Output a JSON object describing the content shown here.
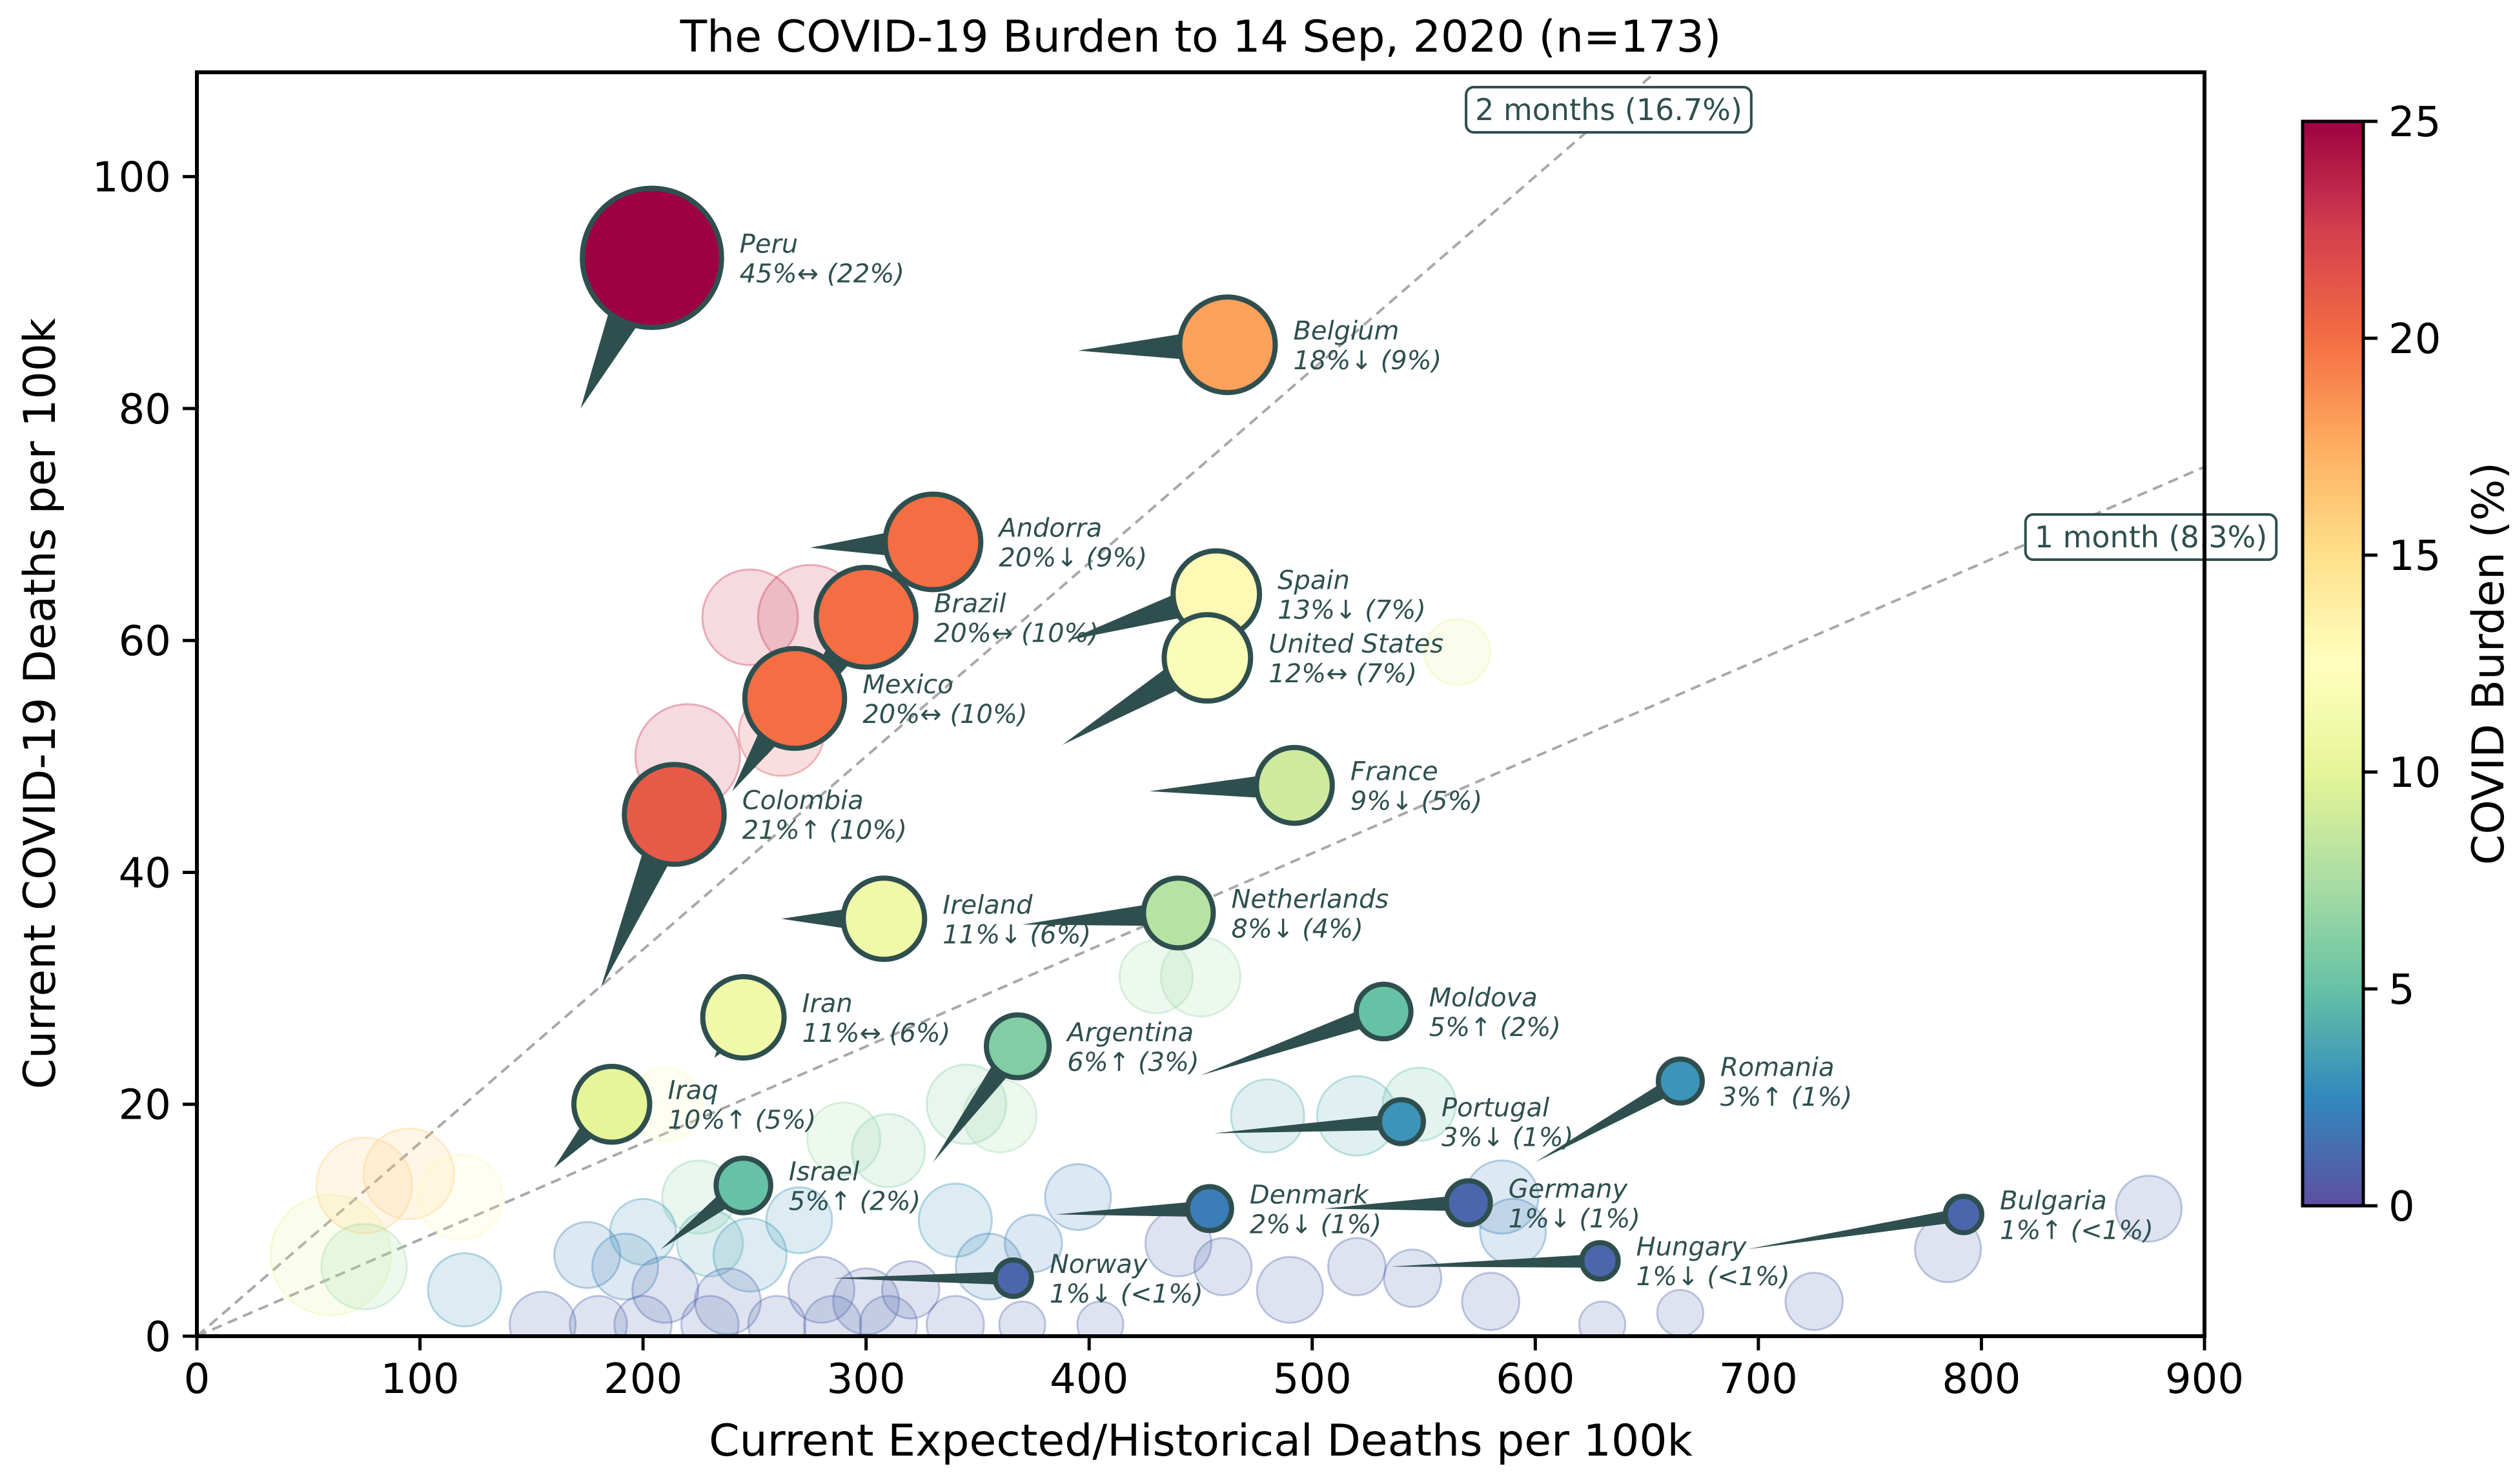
{
  "chart_data": {
    "type": "scatter",
    "title": "The COVID-19 Burden to 14 Sep, 2020 (n=173)",
    "xlabel": "Current Expected/Historical Deaths per 100k",
    "ylabel": "Current COVID-19 Deaths per 100k",
    "xlim": [
      0,
      900
    ],
    "ylim": [
      0,
      109
    ],
    "xticks": [
      "0",
      "100",
      "200",
      "300",
      "400",
      "500",
      "600",
      "700",
      "800",
      "900"
    ],
    "yticks": [
      "0",
      "20",
      "40",
      "60",
      "80",
      "100"
    ],
    "reference_lines": [
      {
        "label": "2 months (16.7%)",
        "slope": 0.1667
      },
      {
        "label": "1 month (8.3%)",
        "slope": 0.0833
      }
    ],
    "colorbar": {
      "label": "COVID Burden (%)",
      "min": 0,
      "max": 25,
      "ticks": [
        "0",
        "5",
        "10",
        "15",
        "20",
        "25"
      ],
      "colors": [
        "#5e4fa2",
        "#3288bd",
        "#66c2a5",
        "#abdda4",
        "#e6f598",
        "#ffffbf",
        "#fee08b",
        "#fdae61",
        "#f46d43",
        "#d53e4f",
        "#9e0142"
      ]
    },
    "countries": [
      {
        "name": "Peru",
        "x": 204,
        "y": 93,
        "burden": 45,
        "size": 22,
        "annotation": "45%↔ (22%)",
        "tail": [
          172,
          80
        ]
      },
      {
        "name": "Belgium",
        "x": 462,
        "y": 85.5,
        "burden": 18,
        "size": 9,
        "annotation": "18%↓ (9%)",
        "tail": [
          395,
          85
        ]
      },
      {
        "name": "Andorra",
        "x": 330,
        "y": 68.5,
        "burden": 20,
        "size": 9,
        "annotation": "20%↓ (9%)",
        "tail": [
          275,
          68
        ]
      },
      {
        "name": "Brazil",
        "x": 300,
        "y": 62,
        "burden": 20,
        "size": 10,
        "annotation": "20%↔ (10%)",
        "tail": [
          255,
          50
        ]
      },
      {
        "name": "Spain",
        "x": 457,
        "y": 64,
        "burden": 13,
        "size": 7,
        "annotation": "13%↓ (7%)",
        "tail": [
          390,
          60
        ]
      },
      {
        "name": "United States",
        "x": 453,
        "y": 58.5,
        "burden": 12,
        "size": 7,
        "annotation": "12%↔ (7%)",
        "tail": [
          388,
          51
        ]
      },
      {
        "name": "Mexico",
        "x": 268,
        "y": 55,
        "burden": 20,
        "size": 10,
        "annotation": "20%↔ (10%)",
        "tail": [
          240,
          47
        ]
      },
      {
        "name": "France",
        "x": 492,
        "y": 47.5,
        "burden": 9,
        "size": 5,
        "annotation": "9%↓ (5%)",
        "tail": [
          427,
          47
        ]
      },
      {
        "name": "Colombia",
        "x": 214,
        "y": 45,
        "burden": 21,
        "size": 10,
        "annotation": "21%↑ (10%)",
        "tail": [
          181,
          30
        ]
      },
      {
        "name": "Ireland",
        "x": 308,
        "y": 36,
        "burden": 11,
        "size": 6,
        "annotation": "11%↓ (6%)",
        "tail": [
          262,
          36
        ]
      },
      {
        "name": "Netherlands",
        "x": 440,
        "y": 36.5,
        "burden": 8,
        "size": 4,
        "annotation": "8%↓ (4%)",
        "tail": [
          370,
          35.5
        ]
      },
      {
        "name": "Iran",
        "x": 245,
        "y": 27.5,
        "burden": 11,
        "size": 6,
        "annotation": "11%↔ (6%)",
        "tail": [
          232,
          24
        ]
      },
      {
        "name": "Moldova",
        "x": 532,
        "y": 28,
        "burden": 5,
        "size": 2,
        "annotation": "5%↑ (2%)",
        "tail": [
          450,
          22.5
        ]
      },
      {
        "name": "Argentina",
        "x": 368,
        "y": 25,
        "burden": 6,
        "size": 3,
        "annotation": "6%↑ (3%)",
        "tail": [
          330,
          15
        ]
      },
      {
        "name": "Iraq",
        "x": 186,
        "y": 20,
        "burden": 10,
        "size": 5,
        "annotation": "10%↑ (5%)",
        "tail": [
          160,
          14.5
        ]
      },
      {
        "name": "Romania",
        "x": 665,
        "y": 22,
        "burden": 3,
        "size": 1,
        "annotation": "3%↑ (1%)",
        "tail": [
          600,
          15
        ]
      },
      {
        "name": "Portugal",
        "x": 540,
        "y": 18.5,
        "burden": 3,
        "size": 1,
        "annotation": "3%↓ (1%)",
        "tail": [
          456,
          17.5
        ]
      },
      {
        "name": "Israel",
        "x": 245,
        "y": 13,
        "burden": 5,
        "size": 2,
        "annotation": "5%↑ (2%)",
        "tail": [
          208,
          7.5
        ]
      },
      {
        "name": "Denmark",
        "x": 454,
        "y": 11,
        "burden": 2,
        "size": 1,
        "annotation": "2%↓ (1%)",
        "tail": [
          385,
          10.5
        ]
      },
      {
        "name": "Germany",
        "x": 570,
        "y": 11.5,
        "burden": 1,
        "size": 1,
        "annotation": "1%↓ (1%)",
        "tail": [
          505,
          11
        ]
      },
      {
        "name": "Bulgaria",
        "x": 792,
        "y": 10.5,
        "burden": 1,
        "size": 0.5,
        "annotation": "1%↑ (<1%)",
        "tail": [
          695,
          7.5
        ]
      },
      {
        "name": "Hungary",
        "x": 629,
        "y": 6.5,
        "burden": 1,
        "size": 0.5,
        "annotation": "1%↓ (<1%)",
        "tail": [
          535,
          6
        ]
      },
      {
        "name": "Norway",
        "x": 366,
        "y": 5,
        "burden": 1,
        "size": 0.5,
        "annotation": "1%↓ (<1%)",
        "tail": [
          285,
          5
        ]
      }
    ],
    "background_points": [
      {
        "x": 60,
        "y": 7,
        "burden": 10,
        "size": 14
      },
      {
        "x": 75,
        "y": 13,
        "burden": 16,
        "size": 8
      },
      {
        "x": 95,
        "y": 14,
        "burden": 16,
        "size": 7
      },
      {
        "x": 118,
        "y": 12,
        "burden": 13,
        "size": 6
      },
      {
        "x": 75,
        "y": 6,
        "burden": 7,
        "size": 6
      },
      {
        "x": 220,
        "y": 50,
        "burden": 23,
        "size": 10
      },
      {
        "x": 248,
        "y": 62,
        "burden": 23,
        "size": 8
      },
      {
        "x": 275,
        "y": 62,
        "burden": 23,
        "size": 10
      },
      {
        "x": 262,
        "y": 52,
        "burden": 22,
        "size": 6
      },
      {
        "x": 565,
        "y": 59,
        "burden": 10,
        "size": 3
      },
      {
        "x": 430,
        "y": 31,
        "burden": 7,
        "size": 4
      },
      {
        "x": 450,
        "y": 31,
        "burden": 7,
        "size": 5
      },
      {
        "x": 345,
        "y": 20,
        "burden": 6,
        "size": 5
      },
      {
        "x": 360,
        "y": 19,
        "burden": 7,
        "size": 4
      },
      {
        "x": 290,
        "y": 17,
        "burden": 7,
        "size": 4
      },
      {
        "x": 310,
        "y": 16,
        "burden": 6,
        "size": 4
      },
      {
        "x": 480,
        "y": 19,
        "burden": 4,
        "size": 4
      },
      {
        "x": 520,
        "y": 19,
        "burden": 4,
        "size": 5
      },
      {
        "x": 548,
        "y": 20,
        "burden": 5,
        "size": 4
      },
      {
        "x": 585,
        "y": 12,
        "burden": 2,
        "size": 4
      },
      {
        "x": 590,
        "y": 9,
        "burden": 2,
        "size": 3
      },
      {
        "x": 340,
        "y": 10,
        "burden": 3,
        "size": 4
      },
      {
        "x": 225,
        "y": 12,
        "burden": 6,
        "size": 4
      },
      {
        "x": 210,
        "y": 20,
        "burden": 12,
        "size": 4
      },
      {
        "x": 230,
        "y": 8,
        "burden": 4,
        "size": 3
      },
      {
        "x": 248,
        "y": 7,
        "burden": 3,
        "size": 4
      },
      {
        "x": 120,
        "y": 4,
        "burden": 3,
        "size": 4
      },
      {
        "x": 175,
        "y": 7,
        "burden": 2,
        "size": 3
      },
      {
        "x": 192,
        "y": 6,
        "burden": 2,
        "size": 3
      },
      {
        "x": 210,
        "y": 4,
        "burden": 1,
        "size": 3
      },
      {
        "x": 238,
        "y": 3,
        "burden": 1,
        "size": 3
      },
      {
        "x": 280,
        "y": 4,
        "burden": 1,
        "size": 3
      },
      {
        "x": 300,
        "y": 3,
        "burden": 1,
        "size": 3
      },
      {
        "x": 320,
        "y": 4,
        "burden": 1,
        "size": 2
      },
      {
        "x": 155,
        "y": 1,
        "burden": 1,
        "size": 3
      },
      {
        "x": 180,
        "y": 1,
        "burden": 1,
        "size": 2
      },
      {
        "x": 200,
        "y": 1,
        "burden": 1,
        "size": 2
      },
      {
        "x": 230,
        "y": 1,
        "burden": 1,
        "size": 2
      },
      {
        "x": 260,
        "y": 1,
        "burden": 1,
        "size": 2
      },
      {
        "x": 285,
        "y": 1,
        "burden": 1,
        "size": 2
      },
      {
        "x": 310,
        "y": 1,
        "burden": 1,
        "size": 2
      },
      {
        "x": 340,
        "y": 1,
        "burden": 1,
        "size": 2
      },
      {
        "x": 370,
        "y": 1,
        "burden": 1,
        "size": 1
      },
      {
        "x": 405,
        "y": 1,
        "burden": 1,
        "size": 1
      },
      {
        "x": 395,
        "y": 12,
        "burden": 2,
        "size": 3
      },
      {
        "x": 440,
        "y": 8,
        "burden": 1,
        "size": 3
      },
      {
        "x": 460,
        "y": 6,
        "burden": 1,
        "size": 2
      },
      {
        "x": 490,
        "y": 4,
        "burden": 1,
        "size": 3
      },
      {
        "x": 520,
        "y": 6,
        "burden": 1,
        "size": 2
      },
      {
        "x": 545,
        "y": 5,
        "burden": 1,
        "size": 2
      },
      {
        "x": 580,
        "y": 3,
        "burden": 1,
        "size": 2
      },
      {
        "x": 630,
        "y": 1,
        "burden": 1,
        "size": 1
      },
      {
        "x": 665,
        "y": 2,
        "burden": 1,
        "size": 1
      },
      {
        "x": 725,
        "y": 3,
        "burden": 1,
        "size": 2
      },
      {
        "x": 785,
        "y": 7.5,
        "burden": 1,
        "size": 3
      },
      {
        "x": 875,
        "y": 11,
        "burden": 1,
        "size": 3
      },
      {
        "x": 355,
        "y": 6,
        "burden": 2,
        "size": 3
      },
      {
        "x": 375,
        "y": 8,
        "burden": 2,
        "size": 2
      },
      {
        "x": 270,
        "y": 10,
        "burden": 3,
        "size": 3
      },
      {
        "x": 200,
        "y": 9,
        "burden": 3,
        "size": 3
      }
    ]
  }
}
